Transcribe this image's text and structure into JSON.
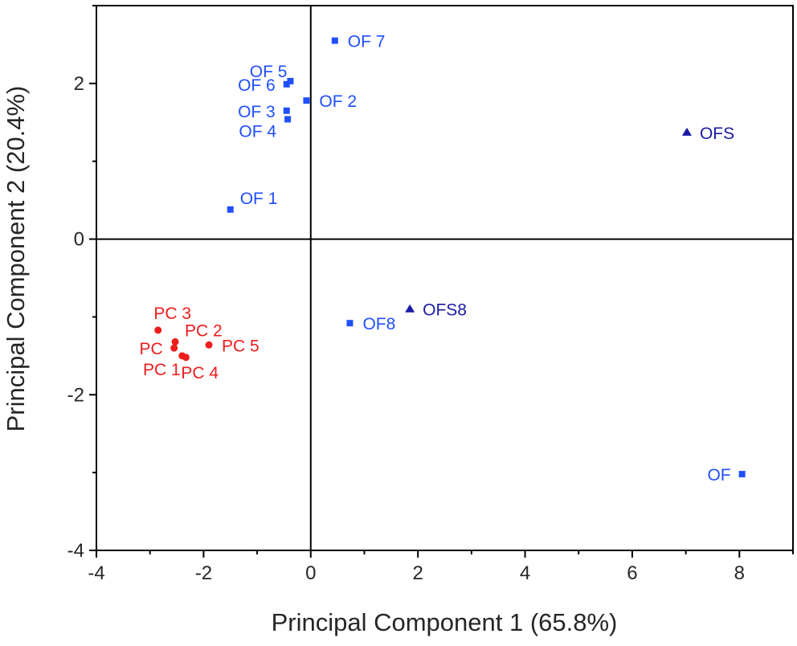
{
  "chart_data": {
    "type": "scatter",
    "xlabel": "Principal Component 1 (65.8%)",
    "ylabel": "Principal Component 2 (20.4%)",
    "xlim": [
      -4,
      9
    ],
    "ylim": [
      -4,
      3
    ],
    "xticks": [
      -4,
      -2,
      0,
      2,
      4,
      6,
      8
    ],
    "yticks": [
      -4,
      -2,
      0,
      2
    ],
    "minor_x_step": 1,
    "minor_y_step": 1,
    "grid": false,
    "zero_lines": true,
    "legend": "none",
    "series": [
      {
        "marker": "square",
        "color": "#1f4fff",
        "points": [
          {
            "label": "OF 7",
            "x": 0.45,
            "y": 2.55,
            "label_pos": "right"
          },
          {
            "label": "OF 5",
            "x": -0.38,
            "y": 2.03,
            "label_pos": "upper-left"
          },
          {
            "label": "OF 6",
            "x": -0.45,
            "y": 1.99,
            "label_pos": "left"
          },
          {
            "label": "OF 2",
            "x": -0.08,
            "y": 1.78,
            "label_pos": "right"
          },
          {
            "label": "OF 3",
            "x": -0.45,
            "y": 1.65,
            "label_pos": "left"
          },
          {
            "label": "OF 4",
            "x": -0.43,
            "y": 1.54,
            "label_pos": "lower-left"
          },
          {
            "label": "OF 1",
            "x": -1.5,
            "y": 0.38,
            "label_pos": "upper-right"
          },
          {
            "label": "OF8",
            "x": 0.73,
            "y": -1.08,
            "label_pos": "right"
          },
          {
            "label": "OF",
            "x": 8.05,
            "y": -3.02,
            "label_pos": "left"
          }
        ]
      },
      {
        "marker": "triangle",
        "color": "#1a1aa8",
        "points": [
          {
            "label": "OFS",
            "x": 7.02,
            "y": 1.37,
            "label_pos": "right"
          },
          {
            "label": "OFS8",
            "x": 1.85,
            "y": -0.9,
            "label_pos": "right"
          }
        ]
      },
      {
        "marker": "circle",
        "color": "#ee1c1c",
        "points": [
          {
            "label": "PC 3",
            "x": -2.85,
            "y": -1.17,
            "label_pos": "above"
          },
          {
            "label": "PC 2",
            "x": -2.53,
            "y": -1.32,
            "label_pos": "upper-right"
          },
          {
            "label": "PC",
            "x": -2.55,
            "y": -1.4,
            "label_pos": "left"
          },
          {
            "label": "PC 1",
            "x": -2.4,
            "y": -1.5,
            "label_pos": "below-left"
          },
          {
            "label": "PC 4",
            "x": -2.33,
            "y": -1.52,
            "label_pos": "below-right"
          },
          {
            "label": "PC 5",
            "x": -1.9,
            "y": -1.36,
            "label_pos": "right"
          }
        ]
      }
    ]
  }
}
